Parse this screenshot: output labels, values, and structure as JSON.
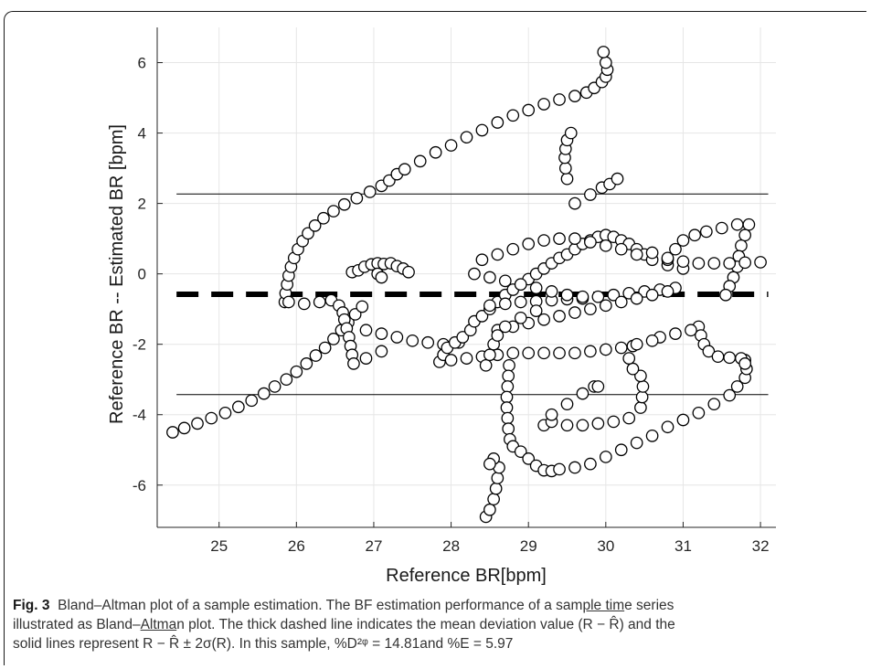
{
  "chart_data": {
    "type": "scatter",
    "xlabel": "Reference BR[bpm]",
    "ylabel": "Reference BR -- Estimated BR [bpm]",
    "xlim": [
      24.2,
      32.2
    ],
    "ylim": [
      -7.2,
      7
    ],
    "xticks": [
      25,
      26,
      27,
      28,
      29,
      30,
      31,
      32
    ],
    "yticks": [
      -6,
      -4,
      -2,
      0,
      2,
      4,
      6
    ],
    "grid": true,
    "mean_line": -0.58,
    "upper_limit": 2.27,
    "lower_limit": -3.43,
    "points": [
      [
        24.4,
        -4.5
      ],
      [
        24.55,
        -4.38
      ],
      [
        24.72,
        -4.25
      ],
      [
        24.9,
        -4.1
      ],
      [
        25.08,
        -3.95
      ],
      [
        25.25,
        -3.78
      ],
      [
        25.42,
        -3.6
      ],
      [
        25.58,
        -3.4
      ],
      [
        25.72,
        -3.2
      ],
      [
        25.87,
        -3.0
      ],
      [
        26.0,
        -2.78
      ],
      [
        26.13,
        -2.55
      ],
      [
        26.25,
        -2.32
      ],
      [
        26.37,
        -2.1
      ],
      [
        26.48,
        -1.85
      ],
      [
        26.58,
        -1.6
      ],
      [
        26.67,
        -1.38
      ],
      [
        26.76,
        -1.15
      ],
      [
        26.85,
        -0.93
      ],
      [
        25.85,
        -0.8
      ],
      [
        25.86,
        -0.55
      ],
      [
        25.88,
        -0.3
      ],
      [
        25.9,
        -0.05
      ],
      [
        25.93,
        0.2
      ],
      [
        25.97,
        0.45
      ],
      [
        26.02,
        0.7
      ],
      [
        26.08,
        0.93
      ],
      [
        26.15,
        1.15
      ],
      [
        26.24,
        1.37
      ],
      [
        26.35,
        1.58
      ],
      [
        26.48,
        1.78
      ],
      [
        26.62,
        1.97
      ],
      [
        26.78,
        2.15
      ],
      [
        26.95,
        2.33
      ],
      [
        27.1,
        2.5
      ],
      [
        27.2,
        2.65
      ],
      [
        27.3,
        2.83
      ],
      [
        27.4,
        2.97
      ],
      [
        27.6,
        3.2
      ],
      [
        27.8,
        3.45
      ],
      [
        28.0,
        3.65
      ],
      [
        28.2,
        3.88
      ],
      [
        28.4,
        4.08
      ],
      [
        28.6,
        4.3
      ],
      [
        28.8,
        4.5
      ],
      [
        29.0,
        4.65
      ],
      [
        29.2,
        4.82
      ],
      [
        29.4,
        4.95
      ],
      [
        29.6,
        5.05
      ],
      [
        29.75,
        5.15
      ],
      [
        29.85,
        5.28
      ],
      [
        29.95,
        5.45
      ],
      [
        30.0,
        5.6
      ],
      [
        30.02,
        5.8
      ],
      [
        30.0,
        6.0
      ],
      [
        29.97,
        6.3
      ],
      [
        29.5,
        2.7
      ],
      [
        29.48,
        3.0
      ],
      [
        29.47,
        3.3
      ],
      [
        29.48,
        3.55
      ],
      [
        29.5,
        3.8
      ],
      [
        29.55,
        4.0
      ],
      [
        29.6,
        2.0
      ],
      [
        29.8,
        2.25
      ],
      [
        29.95,
        2.45
      ],
      [
        30.05,
        2.55
      ],
      [
        30.15,
        2.7
      ],
      [
        25.9,
        -0.8
      ],
      [
        26.1,
        -0.85
      ],
      [
        26.3,
        -0.8
      ],
      [
        26.45,
        -0.75
      ],
      [
        26.55,
        -0.9
      ],
      [
        26.6,
        -1.1
      ],
      [
        26.62,
        -1.3
      ],
      [
        26.65,
        -1.55
      ],
      [
        26.68,
        -1.8
      ],
      [
        26.7,
        -2.05
      ],
      [
        26.72,
        -2.3
      ],
      [
        26.74,
        -2.55
      ],
      [
        26.72,
        0.05
      ],
      [
        26.8,
        0.1
      ],
      [
        26.88,
        0.2
      ],
      [
        26.97,
        0.27
      ],
      [
        27.05,
        0.3
      ],
      [
        27.13,
        0.28
      ],
      [
        27.22,
        0.3
      ],
      [
        27.3,
        0.22
      ],
      [
        27.38,
        0.15
      ],
      [
        27.45,
        0.05
      ],
      [
        27.05,
        0.0
      ],
      [
        27.1,
        -0.1
      ],
      [
        26.9,
        -1.6
      ],
      [
        27.1,
        -1.7
      ],
      [
        27.3,
        -1.8
      ],
      [
        27.5,
        -1.9
      ],
      [
        27.7,
        -1.95
      ],
      [
        27.9,
        -2.0
      ],
      [
        28.1,
        -1.95
      ],
      [
        27.1,
        -2.2
      ],
      [
        26.9,
        -2.4
      ],
      [
        27.85,
        -2.5
      ],
      [
        27.9,
        -2.3
      ],
      [
        27.95,
        -2.1
      ],
      [
        28.05,
        -1.95
      ],
      [
        28.15,
        -1.8
      ],
      [
        28.25,
        -1.6
      ],
      [
        28.3,
        -1.35
      ],
      [
        28.4,
        -1.2
      ],
      [
        28.5,
        -1.0
      ],
      [
        28.6,
        -0.8
      ],
      [
        28.7,
        -0.6
      ],
      [
        28.8,
        -0.45
      ],
      [
        28.9,
        -0.3
      ],
      [
        29.0,
        -0.15
      ],
      [
        29.1,
        0.0
      ],
      [
        29.2,
        0.15
      ],
      [
        29.3,
        0.3
      ],
      [
        29.4,
        0.45
      ],
      [
        29.5,
        0.55
      ],
      [
        29.6,
        0.7
      ],
      [
        29.7,
        0.85
      ],
      [
        29.8,
        0.95
      ],
      [
        29.9,
        1.05
      ],
      [
        30.0,
        1.1
      ],
      [
        30.1,
        1.05
      ],
      [
        30.2,
        0.95
      ],
      [
        30.3,
        0.85
      ],
      [
        30.4,
        0.7
      ],
      [
        30.5,
        0.55
      ],
      [
        28.0,
        -2.45
      ],
      [
        28.2,
        -2.4
      ],
      [
        28.4,
        -2.35
      ],
      [
        28.6,
        -2.3
      ],
      [
        28.8,
        -2.25
      ],
      [
        29.0,
        -2.25
      ],
      [
        29.2,
        -2.25
      ],
      [
        29.4,
        -2.25
      ],
      [
        29.6,
        -2.25
      ],
      [
        29.8,
        -2.2
      ],
      [
        30.0,
        -2.15
      ],
      [
        30.2,
        -2.1
      ],
      [
        30.35,
        -2.05
      ],
      [
        28.5,
        -0.9
      ],
      [
        28.7,
        -0.85
      ],
      [
        28.9,
        -0.8
      ],
      [
        29.1,
        -0.78
      ],
      [
        29.3,
        -0.75
      ],
      [
        29.5,
        -0.72
      ],
      [
        29.7,
        -0.7
      ],
      [
        29.9,
        -0.65
      ],
      [
        30.1,
        -0.6
      ],
      [
        30.3,
        -0.55
      ],
      [
        30.5,
        -0.5
      ],
      [
        30.7,
        -0.45
      ],
      [
        30.9,
        -0.4
      ],
      [
        28.3,
        0.0
      ],
      [
        28.5,
        -0.1
      ],
      [
        28.7,
        -0.2
      ],
      [
        28.9,
        -0.3
      ],
      [
        29.1,
        -0.4
      ],
      [
        29.3,
        -0.5
      ],
      [
        29.5,
        -0.6
      ],
      [
        29.7,
        -0.65
      ],
      [
        28.4,
        0.4
      ],
      [
        28.6,
        0.55
      ],
      [
        28.8,
        0.7
      ],
      [
        29.0,
        0.85
      ],
      [
        29.2,
        0.95
      ],
      [
        29.4,
        1.0
      ],
      [
        29.6,
        1.0
      ],
      [
        29.8,
        0.9
      ],
      [
        30.0,
        0.8
      ],
      [
        30.2,
        0.7
      ],
      [
        30.4,
        0.55
      ],
      [
        30.6,
        0.4
      ],
      [
        30.8,
        0.25
      ],
      [
        31.0,
        0.15
      ],
      [
        28.6,
        -1.6
      ],
      [
        28.8,
        -1.5
      ],
      [
        29.0,
        -1.4
      ],
      [
        29.2,
        -1.3
      ],
      [
        29.4,
        -1.2
      ],
      [
        29.6,
        -1.1
      ],
      [
        29.8,
        -1.0
      ],
      [
        30.0,
        -0.9
      ],
      [
        30.2,
        -0.8
      ],
      [
        30.4,
        -0.7
      ],
      [
        30.6,
        -0.6
      ],
      [
        30.8,
        -0.5
      ],
      [
        28.45,
        -2.6
      ],
      [
        28.5,
        -2.3
      ],
      [
        28.55,
        -2.0
      ],
      [
        28.6,
        -1.75
      ],
      [
        28.7,
        -1.5
      ],
      [
        28.9,
        -1.25
      ],
      [
        29.1,
        -1.05
      ],
      [
        28.75,
        -2.6
      ],
      [
        28.74,
        -2.9
      ],
      [
        28.73,
        -3.2
      ],
      [
        28.72,
        -3.5
      ],
      [
        28.72,
        -3.8
      ],
      [
        28.73,
        -4.1
      ],
      [
        28.74,
        -4.4
      ],
      [
        28.76,
        -4.7
      ],
      [
        28.8,
        -4.9
      ],
      [
        28.9,
        -5.05
      ],
      [
        29.0,
        -5.25
      ],
      [
        29.1,
        -5.45
      ],
      [
        29.2,
        -5.58
      ],
      [
        29.3,
        -5.6
      ],
      [
        28.45,
        -6.9
      ],
      [
        28.5,
        -6.7
      ],
      [
        28.55,
        -6.4
      ],
      [
        28.58,
        -6.1
      ],
      [
        28.6,
        -5.8
      ],
      [
        28.62,
        -5.5
      ],
      [
        28.55,
        -5.25
      ],
      [
        28.5,
        -5.4
      ],
      [
        29.4,
        -5.55
      ],
      [
        29.6,
        -5.5
      ],
      [
        29.8,
        -5.4
      ],
      [
        30.0,
        -5.2
      ],
      [
        30.2,
        -5.0
      ],
      [
        30.4,
        -4.8
      ],
      [
        30.6,
        -4.6
      ],
      [
        30.8,
        -4.35
      ],
      [
        31.0,
        -4.15
      ],
      [
        31.2,
        -3.95
      ],
      [
        31.4,
        -3.7
      ],
      [
        31.6,
        -3.45
      ],
      [
        31.7,
        -3.2
      ],
      [
        31.8,
        -2.95
      ],
      [
        31.82,
        -2.7
      ],
      [
        31.8,
        -2.45
      ],
      [
        29.2,
        -4.3
      ],
      [
        29.3,
        -4.2
      ],
      [
        29.5,
        -4.3
      ],
      [
        29.7,
        -4.3
      ],
      [
        29.9,
        -4.25
      ],
      [
        30.1,
        -4.2
      ],
      [
        30.3,
        -4.1
      ],
      [
        30.45,
        -3.8
      ],
      [
        30.47,
        -3.5
      ],
      [
        30.48,
        -3.2
      ],
      [
        30.45,
        -2.9
      ],
      [
        30.35,
        -2.7
      ],
      [
        30.3,
        -2.4
      ],
      [
        29.3,
        -4.0
      ],
      [
        29.5,
        -3.7
      ],
      [
        29.7,
        -3.4
      ],
      [
        29.85,
        -3.2
      ],
      [
        29.9,
        -3.2
      ],
      [
        31.2,
        -1.5
      ],
      [
        31.23,
        -1.75
      ],
      [
        31.27,
        -2.0
      ],
      [
        31.33,
        -2.2
      ],
      [
        31.45,
        -2.35
      ],
      [
        31.6,
        -2.38
      ],
      [
        31.75,
        -2.4
      ],
      [
        31.8,
        -2.55
      ],
      [
        30.8,
        0.4
      ],
      [
        30.9,
        0.7
      ],
      [
        31.0,
        0.95
      ],
      [
        31.15,
        1.1
      ],
      [
        31.3,
        1.2
      ],
      [
        31.5,
        1.3
      ],
      [
        31.7,
        1.4
      ],
      [
        31.85,
        1.4
      ],
      [
        31.8,
        1.1
      ],
      [
        31.75,
        0.8
      ],
      [
        31.72,
        0.5
      ],
      [
        31.7,
        0.2
      ],
      [
        31.65,
        -0.1
      ],
      [
        31.6,
        -0.35
      ],
      [
        31.55,
        -0.6
      ],
      [
        30.6,
        0.6
      ],
      [
        30.8,
        0.45
      ],
      [
        31.0,
        0.35
      ],
      [
        31.2,
        0.3
      ],
      [
        31.4,
        0.3
      ],
      [
        31.6,
        0.3
      ],
      [
        31.8,
        0.32
      ],
      [
        32.0,
        0.33
      ],
      [
        30.7,
        -1.8
      ],
      [
        30.9,
        -1.7
      ],
      [
        31.1,
        -1.6
      ],
      [
        30.6,
        -1.9
      ],
      [
        30.4,
        -2.0
      ]
    ]
  },
  "caption": {
    "fig_label": "Fig. 3",
    "line1_a": "Bland–Altman plot of a sample estimation. The BF estimation performance of a sam",
    "line1_u": "ple tim",
    "line1_b": "e series",
    "line2_a": "illustrated as Bland–",
    "line2_u": "Altma",
    "line2_b": "n plot. The thick dashed line indicates the mean deviation value (R − R̂) and the",
    "line3": "solid lines represent R − R̂ ± 2σ(R). In this sample, %D²ᵠ = 14.81and %E = 5.97"
  }
}
